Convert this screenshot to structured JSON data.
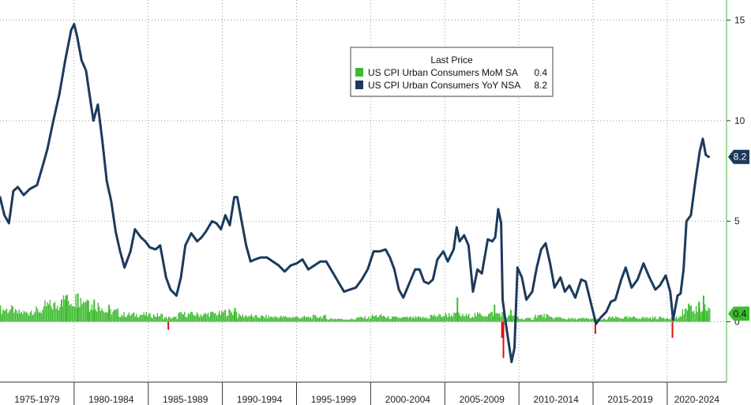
{
  "chart_data": {
    "type": "bar+line",
    "title": "",
    "legend": {
      "title": "Last Price",
      "placement": "top-center",
      "entries": [
        {
          "label": "US CPI Urban Consumers MoM SA",
          "value": "0.4",
          "color": "#3dbb30"
        },
        {
          "label": "US CPI Urban Consumers YoY NSA",
          "value": "8.2",
          "color": "#1b3a5c"
        }
      ]
    },
    "x_axis": {
      "range": [
        1975.0,
        2024.0
      ],
      "period_labels": [
        "1975-1979",
        "1980-1984",
        "1985-1989",
        "1990-1994",
        "1995-1999",
        "2000-2004",
        "2005-2009",
        "2010-2014",
        "2015-2019",
        "2020-2024"
      ],
      "period_boundaries": [
        1980,
        1985,
        1990,
        1995,
        2000,
        2005,
        2010,
        2015,
        2020
      ]
    },
    "y_axis": {
      "range": [
        -3,
        16
      ],
      "ticks": [
        0,
        5,
        10,
        15
      ],
      "tick_labels": [
        "0",
        "5",
        "10",
        "15"
      ],
      "position": "right"
    },
    "series": [
      {
        "name": "US CPI Urban Consumers YoY NSA",
        "kind": "line",
        "color": "#1b3a5c",
        "last_value_label": "8.2",
        "points": [
          [
            1975.0,
            6.2
          ],
          [
            1975.3,
            5.3
          ],
          [
            1975.6,
            4.9
          ],
          [
            1975.9,
            6.5
          ],
          [
            1976.2,
            6.7
          ],
          [
            1976.6,
            6.3
          ],
          [
            1977.0,
            6.6
          ],
          [
            1977.5,
            6.8
          ],
          [
            1977.9,
            7.8
          ],
          [
            1978.2,
            8.6
          ],
          [
            1978.6,
            10.0
          ],
          [
            1979.0,
            11.3
          ],
          [
            1979.4,
            13.0
          ],
          [
            1979.8,
            14.5
          ],
          [
            1980.0,
            14.8
          ],
          [
            1980.2,
            14.2
          ],
          [
            1980.5,
            13.0
          ],
          [
            1980.8,
            12.5
          ],
          [
            1981.1,
            11.0
          ],
          [
            1981.3,
            10.0
          ],
          [
            1981.6,
            10.8
          ],
          [
            1981.9,
            9.0
          ],
          [
            1982.2,
            7.0
          ],
          [
            1982.5,
            6.0
          ],
          [
            1982.8,
            4.5
          ],
          [
            1983.1,
            3.5
          ],
          [
            1983.4,
            2.7
          ],
          [
            1983.8,
            3.5
          ],
          [
            1984.1,
            4.6
          ],
          [
            1984.5,
            4.2
          ],
          [
            1984.8,
            4.0
          ],
          [
            1985.1,
            3.7
          ],
          [
            1985.5,
            3.6
          ],
          [
            1985.8,
            3.8
          ],
          [
            1986.2,
            2.2
          ],
          [
            1986.5,
            1.6
          ],
          [
            1986.9,
            1.3
          ],
          [
            1987.2,
            2.2
          ],
          [
            1987.5,
            3.8
          ],
          [
            1987.9,
            4.4
          ],
          [
            1988.3,
            4.0
          ],
          [
            1988.6,
            4.2
          ],
          [
            1988.9,
            4.5
          ],
          [
            1989.3,
            5.0
          ],
          [
            1989.6,
            4.9
          ],
          [
            1989.9,
            4.6
          ],
          [
            1990.2,
            5.3
          ],
          [
            1990.5,
            4.8
          ],
          [
            1990.8,
            6.2
          ],
          [
            1991.0,
            6.2
          ],
          [
            1991.3,
            5.0
          ],
          [
            1991.6,
            3.8
          ],
          [
            1991.9,
            3.0
          ],
          [
            1992.2,
            3.1
          ],
          [
            1992.6,
            3.2
          ],
          [
            1993.0,
            3.2
          ],
          [
            1993.4,
            3.0
          ],
          [
            1993.8,
            2.8
          ],
          [
            1994.2,
            2.5
          ],
          [
            1994.6,
            2.8
          ],
          [
            1995.0,
            2.9
          ],
          [
            1995.4,
            3.1
          ],
          [
            1995.8,
            2.6
          ],
          [
            1996.2,
            2.8
          ],
          [
            1996.6,
            3.0
          ],
          [
            1997.0,
            3.0
          ],
          [
            1997.4,
            2.5
          ],
          [
            1997.8,
            2.0
          ],
          [
            1998.2,
            1.5
          ],
          [
            1998.6,
            1.6
          ],
          [
            1999.0,
            1.7
          ],
          [
            1999.4,
            2.1
          ],
          [
            1999.8,
            2.6
          ],
          [
            2000.2,
            3.5
          ],
          [
            2000.6,
            3.5
          ],
          [
            2001.0,
            3.6
          ],
          [
            2001.3,
            3.2
          ],
          [
            2001.6,
            2.6
          ],
          [
            2001.9,
            1.6
          ],
          [
            2002.2,
            1.2
          ],
          [
            2002.6,
            1.9
          ],
          [
            2003.0,
            2.6
          ],
          [
            2003.3,
            2.6
          ],
          [
            2003.6,
            2.0
          ],
          [
            2003.9,
            1.9
          ],
          [
            2004.2,
            2.1
          ],
          [
            2004.5,
            3.1
          ],
          [
            2004.9,
            3.5
          ],
          [
            2005.2,
            3.0
          ],
          [
            2005.6,
            3.6
          ],
          [
            2005.8,
            4.7
          ],
          [
            2006.0,
            4.0
          ],
          [
            2006.3,
            4.3
          ],
          [
            2006.6,
            3.8
          ],
          [
            2006.9,
            1.5
          ],
          [
            2007.2,
            2.6
          ],
          [
            2007.5,
            2.4
          ],
          [
            2007.9,
            4.1
          ],
          [
            2008.2,
            4.0
          ],
          [
            2008.4,
            4.2
          ],
          [
            2008.6,
            5.6
          ],
          [
            2008.8,
            4.9
          ],
          [
            2008.9,
            1.1
          ],
          [
            2009.1,
            0.0
          ],
          [
            2009.3,
            -1.0
          ],
          [
            2009.5,
            -2.0
          ],
          [
            2009.7,
            -1.3
          ],
          [
            2009.9,
            2.7
          ],
          [
            2010.2,
            2.2
          ],
          [
            2010.5,
            1.1
          ],
          [
            2010.9,
            1.5
          ],
          [
            2011.2,
            2.7
          ],
          [
            2011.5,
            3.6
          ],
          [
            2011.8,
            3.9
          ],
          [
            2012.1,
            2.9
          ],
          [
            2012.4,
            1.7
          ],
          [
            2012.8,
            2.2
          ],
          [
            2013.1,
            1.5
          ],
          [
            2013.4,
            1.8
          ],
          [
            2013.8,
            1.2
          ],
          [
            2014.2,
            2.1
          ],
          [
            2014.5,
            2.0
          ],
          [
            2014.9,
            0.8
          ],
          [
            2015.2,
            -0.1
          ],
          [
            2015.5,
            0.2
          ],
          [
            2015.9,
            0.5
          ],
          [
            2016.2,
            1.0
          ],
          [
            2016.5,
            1.1
          ],
          [
            2016.9,
            2.1
          ],
          [
            2017.2,
            2.7
          ],
          [
            2017.6,
            1.7
          ],
          [
            2018.0,
            2.1
          ],
          [
            2018.4,
            2.9
          ],
          [
            2018.8,
            2.2
          ],
          [
            2019.2,
            1.6
          ],
          [
            2019.5,
            1.8
          ],
          [
            2019.9,
            2.3
          ],
          [
            2020.2,
            1.5
          ],
          [
            2020.4,
            0.1
          ],
          [
            2020.7,
            1.3
          ],
          [
            2020.9,
            1.4
          ],
          [
            2021.1,
            2.6
          ],
          [
            2021.3,
            5.0
          ],
          [
            2021.6,
            5.3
          ],
          [
            2021.9,
            7.0
          ],
          [
            2022.2,
            8.5
          ],
          [
            2022.4,
            9.1
          ],
          [
            2022.6,
            8.3
          ],
          [
            2022.8,
            8.2
          ]
        ]
      },
      {
        "name": "US CPI Urban Consumers MoM SA",
        "kind": "bar",
        "color_positive": "#3dbb30",
        "color_negative": "#dd1111",
        "last_value_label": "0.4",
        "segments": [
          [
            1975.0,
            1976.0,
            0.6
          ],
          [
            1976.0,
            1977.0,
            0.45
          ],
          [
            1977.0,
            1978.0,
            0.55
          ],
          [
            1978.0,
            1979.0,
            0.8
          ],
          [
            1979.0,
            1980.0,
            1.05
          ],
          [
            1980.0,
            1981.0,
            1.1
          ],
          [
            1981.0,
            1982.0,
            0.8
          ],
          [
            1982.0,
            1983.0,
            0.5
          ],
          [
            1983.0,
            1984.0,
            0.35
          ],
          [
            1984.0,
            1985.0,
            0.35
          ],
          [
            1985.0,
            1986.0,
            0.32
          ],
          [
            1986.0,
            1987.0,
            0.2
          ],
          [
            1987.0,
            1988.0,
            0.37
          ],
          [
            1988.0,
            1989.0,
            0.36
          ],
          [
            1989.0,
            1990.0,
            0.4
          ],
          [
            1990.0,
            1991.0,
            0.48
          ],
          [
            1991.0,
            1992.0,
            0.3
          ],
          [
            1992.0,
            1993.0,
            0.25
          ],
          [
            1993.0,
            1994.0,
            0.24
          ],
          [
            1994.0,
            1995.0,
            0.23
          ],
          [
            1995.0,
            1996.0,
            0.22
          ],
          [
            1996.0,
            1997.0,
            0.25
          ],
          [
            1997.0,
            1998.0,
            0.15
          ],
          [
            1998.0,
            1999.0,
            0.13
          ],
          [
            1999.0,
            2000.0,
            0.2
          ],
          [
            2000.0,
            2001.0,
            0.28
          ],
          [
            2001.0,
            2002.0,
            0.2
          ],
          [
            2002.0,
            2003.0,
            0.2
          ],
          [
            2003.0,
            2004.0,
            0.2
          ],
          [
            2004.0,
            2005.0,
            0.3
          ],
          [
            2005.0,
            2006.0,
            0.35
          ],
          [
            2006.0,
            2007.0,
            0.3
          ],
          [
            2007.0,
            2008.0,
            0.35
          ],
          [
            2008.0,
            2009.0,
            0.4
          ],
          [
            2009.0,
            2010.0,
            0.25
          ],
          [
            2010.0,
            2011.0,
            0.15
          ],
          [
            2011.0,
            2012.0,
            0.3
          ],
          [
            2012.0,
            2013.0,
            0.2
          ],
          [
            2013.0,
            2014.0,
            0.15
          ],
          [
            2014.0,
            2015.0,
            0.15
          ],
          [
            2015.0,
            2016.0,
            0.12
          ],
          [
            2016.0,
            2017.0,
            0.2
          ],
          [
            2017.0,
            2018.0,
            0.2
          ],
          [
            2018.0,
            2019.0,
            0.2
          ],
          [
            2019.0,
            2020.0,
            0.2
          ],
          [
            2020.0,
            2021.0,
            0.2
          ],
          [
            2021.0,
            2022.0,
            0.6
          ],
          [
            2022.0,
            2022.85,
            0.65
          ]
        ],
        "spikes": [
          [
            1979.1,
            1.1
          ],
          [
            1979.4,
            1.3
          ],
          [
            1980.2,
            1.4
          ],
          [
            1980.9,
            1.05
          ],
          [
            1981.3,
            1.1
          ],
          [
            1982.3,
            0.85
          ],
          [
            1986.3,
            -0.4
          ],
          [
            1990.8,
            0.7
          ],
          [
            2005.8,
            1.2
          ],
          [
            2008.3,
            0.85
          ],
          [
            2008.8,
            -0.8
          ],
          [
            2008.9,
            -1.8
          ],
          [
            2009.4,
            0.6
          ],
          [
            2015.1,
            -0.6
          ],
          [
            2020.3,
            -0.8
          ],
          [
            2021.4,
            0.9
          ],
          [
            2022.1,
            1.0
          ],
          [
            2022.4,
            1.3
          ],
          [
            2022.6,
            0.4
          ]
        ]
      }
    ]
  }
}
